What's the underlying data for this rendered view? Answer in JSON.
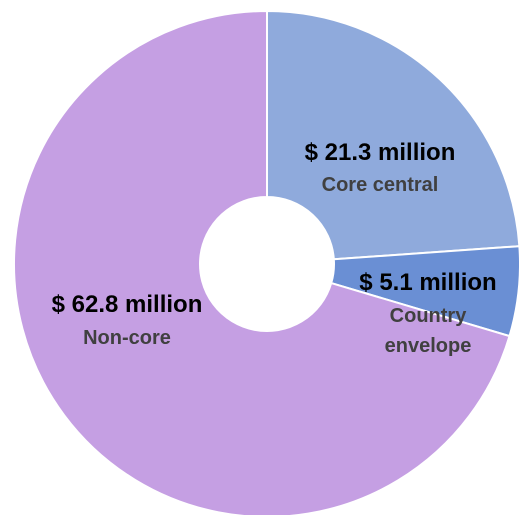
{
  "chart_data": {
    "type": "pie",
    "style": "donut",
    "units": "$ million",
    "slices": [
      {
        "category": "Core central",
        "value": 21.3,
        "value_label": "$ 21.3 million",
        "color": "#8faadc"
      },
      {
        "category": [
          "Country",
          "envelope"
        ],
        "value": 5.1,
        "value_label": "$ 5.1 million",
        "color": "#6a8fd4"
      },
      {
        "category": "Non-core",
        "value": 62.8,
        "value_label": "$ 62.8 million",
        "color": "#c59fe3"
      }
    ],
    "start_angle": "12 o'clock",
    "direction": "clockwise",
    "legend": "none"
  }
}
